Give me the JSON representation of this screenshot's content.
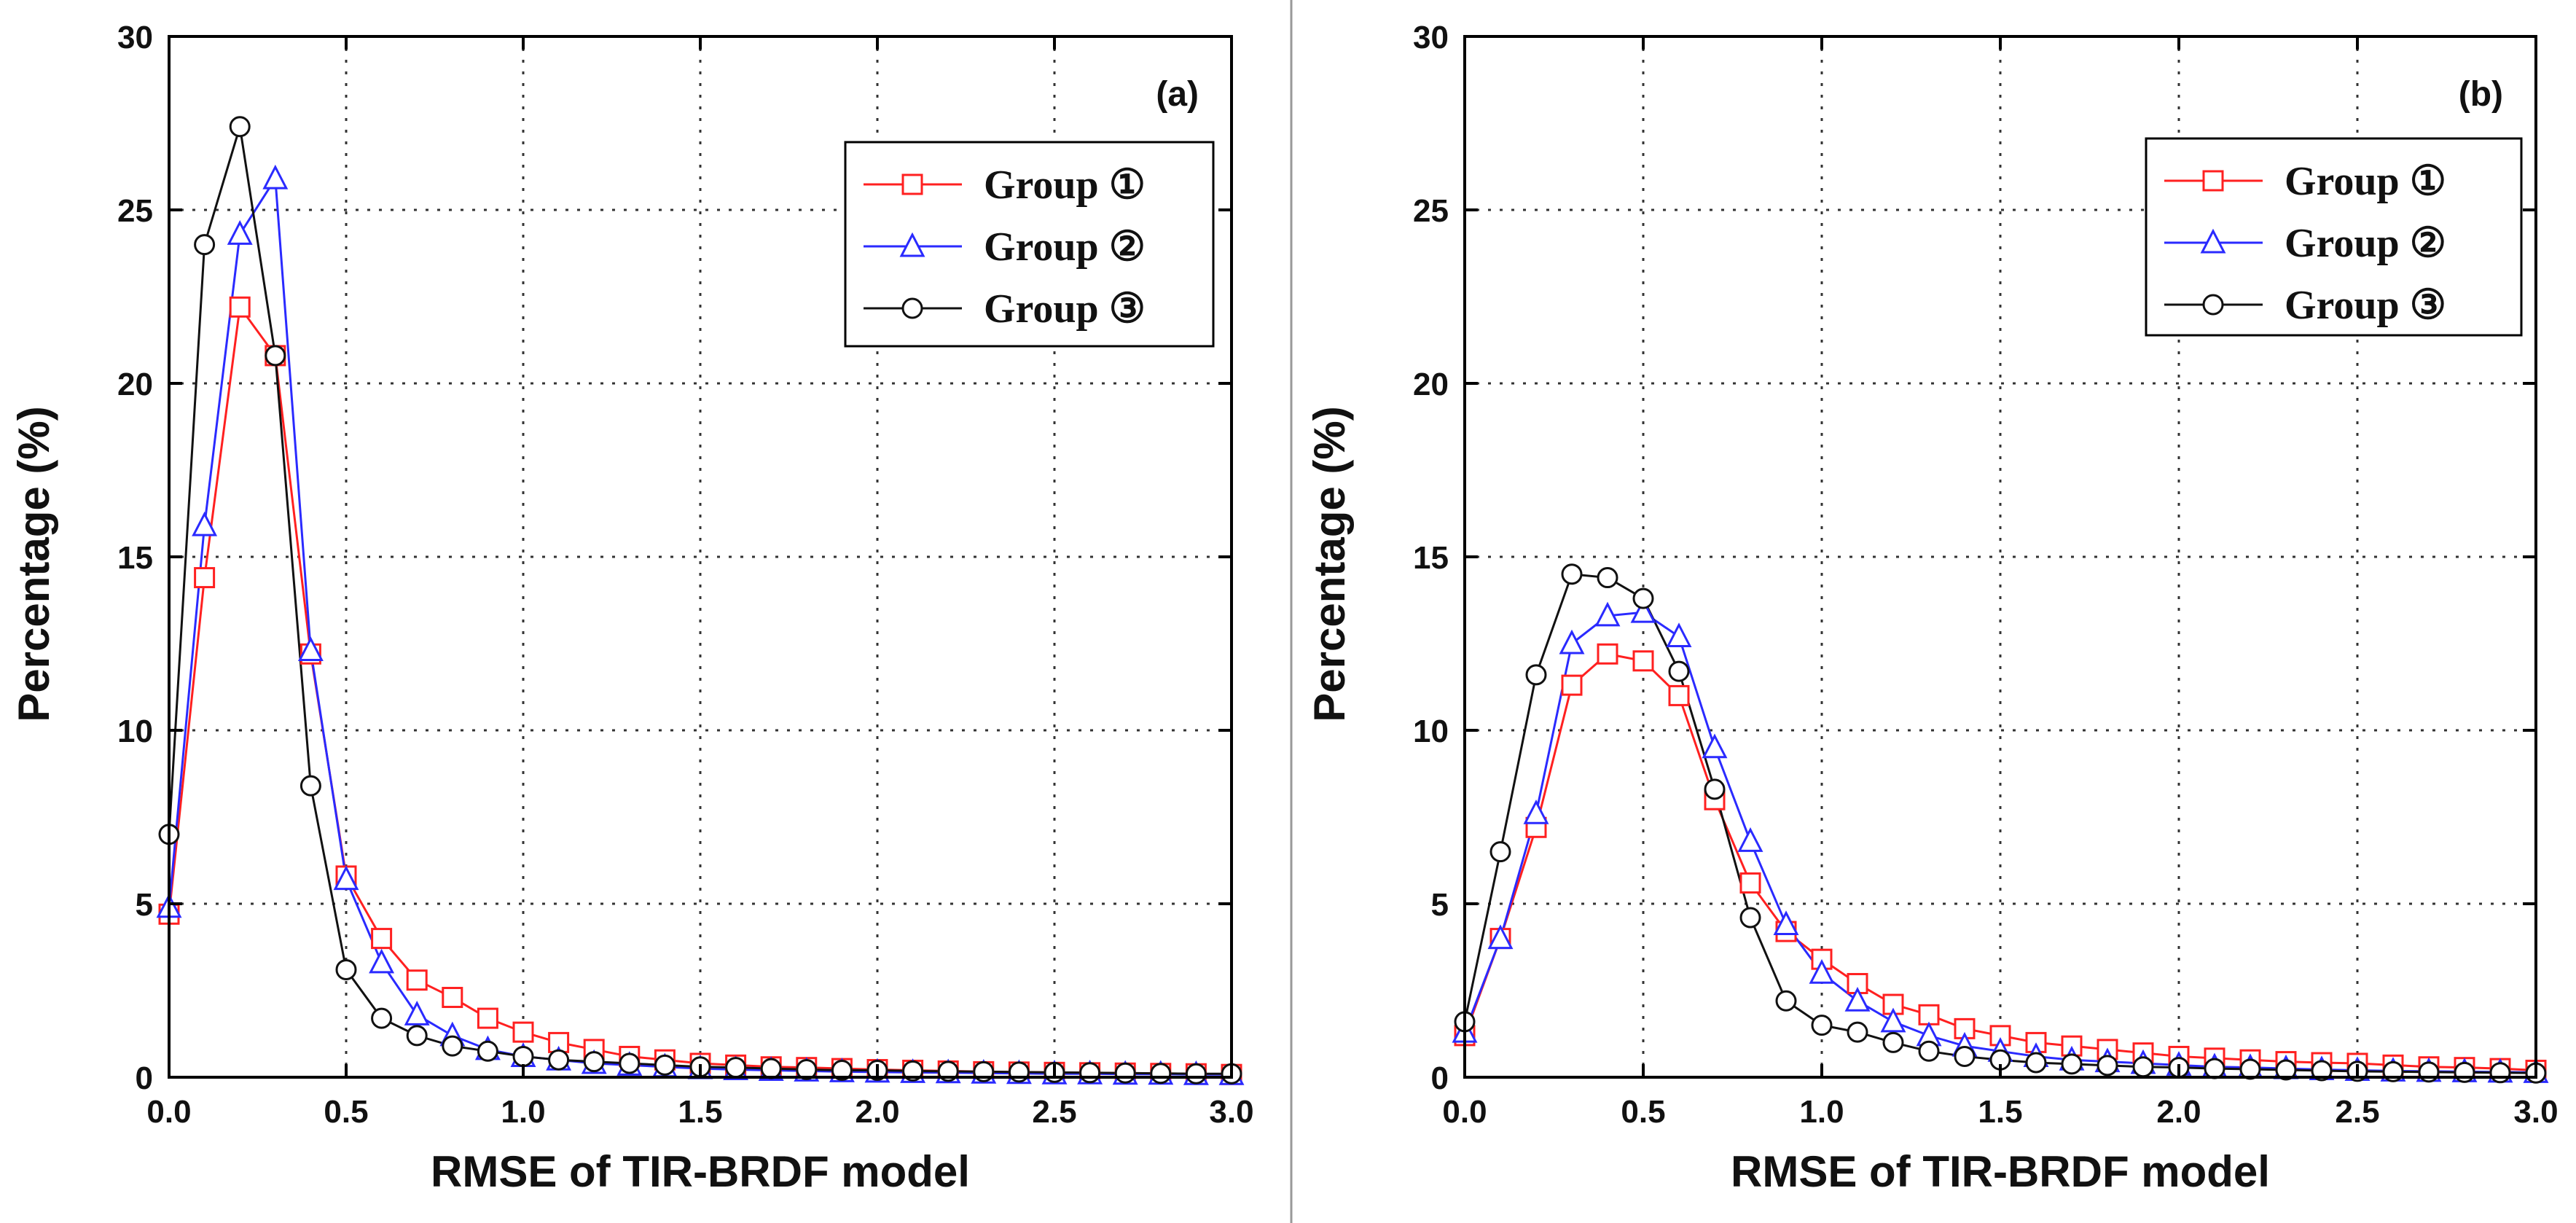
{
  "chart_data": [
    {
      "type": "line",
      "panel_label": "(a)",
      "xlabel": "RMSE of TIR-BRDF model",
      "ylabel": "Percentage (%)",
      "xlim": [
        0,
        3.0
      ],
      "ylim": [
        0,
        30
      ],
      "xticks": [
        "0.0",
        "0.5",
        "1.0",
        "1.5",
        "2.0",
        "2.5",
        "3.0"
      ],
      "yticks": [
        "0",
        "5",
        "10",
        "15",
        "20",
        "25",
        "30"
      ],
      "grid": true,
      "legend_position": "top-right",
      "x": [
        0.0,
        0.1,
        0.2,
        0.3,
        0.4,
        0.5,
        0.6,
        0.7,
        0.8,
        0.9,
        1.0,
        1.1,
        1.2,
        1.3,
        1.4,
        1.5,
        1.6,
        1.7,
        1.8,
        1.9,
        2.0,
        2.1,
        2.2,
        2.3,
        2.4,
        2.5,
        2.6,
        2.7,
        2.8,
        2.9,
        3.0
      ],
      "series": [
        {
          "name": "Group ①",
          "color": "#ff2020",
          "marker": "square",
          "values": [
            4.7,
            14.4,
            22.2,
            20.8,
            12.2,
            5.8,
            4.0,
            2.8,
            2.3,
            1.7,
            1.3,
            1.0,
            0.8,
            0.6,
            0.5,
            0.4,
            0.35,
            0.3,
            0.28,
            0.25,
            0.22,
            0.2,
            0.18,
            0.16,
            0.15,
            0.14,
            0.13,
            0.12,
            0.11,
            0.1,
            0.08
          ]
        },
        {
          "name": "Group ②",
          "color": "#2a2aff",
          "marker": "triangle",
          "values": [
            4.9,
            15.9,
            24.3,
            25.9,
            12.3,
            5.7,
            3.3,
            1.8,
            1.2,
            0.8,
            0.6,
            0.5,
            0.4,
            0.35,
            0.3,
            0.25,
            0.22,
            0.2,
            0.18,
            0.16,
            0.15,
            0.14,
            0.13,
            0.12,
            0.11,
            0.1,
            0.1,
            0.09,
            0.09,
            0.08,
            0.08
          ]
        },
        {
          "name": "Group ③",
          "color": "#111111",
          "marker": "circle",
          "values": [
            7.0,
            24.0,
            27.4,
            20.8,
            8.4,
            3.1,
            1.7,
            1.2,
            0.9,
            0.75,
            0.6,
            0.5,
            0.45,
            0.4,
            0.35,
            0.3,
            0.28,
            0.25,
            0.22,
            0.2,
            0.2,
            0.18,
            0.17,
            0.16,
            0.15,
            0.14,
            0.13,
            0.12,
            0.11,
            0.1,
            0.1
          ]
        }
      ]
    },
    {
      "type": "line",
      "panel_label": "(b)",
      "xlabel": "RMSE of TIR-BRDF model",
      "ylabel": "Percentage (%)",
      "xlim": [
        0,
        3.0
      ],
      "ylim": [
        0,
        30
      ],
      "xticks": [
        "0.0",
        "0.5",
        "1.0",
        "1.5",
        "2.0",
        "2.5",
        "3.0"
      ],
      "yticks": [
        "0",
        "5",
        "10",
        "15",
        "20",
        "25",
        "30"
      ],
      "grid": true,
      "legend_position": "top-right",
      "x": [
        0.0,
        0.1,
        0.2,
        0.3,
        0.4,
        0.5,
        0.6,
        0.7,
        0.8,
        0.9,
        1.0,
        1.1,
        1.2,
        1.3,
        1.4,
        1.5,
        1.6,
        1.7,
        1.8,
        1.9,
        2.0,
        2.1,
        2.2,
        2.3,
        2.4,
        2.5,
        2.6,
        2.7,
        2.8,
        2.9,
        3.0
      ],
      "series": [
        {
          "name": "Group ①",
          "color": "#ff2020",
          "marker": "square",
          "values": [
            1.2,
            4.0,
            7.2,
            11.3,
            12.2,
            12.0,
            11.0,
            8.0,
            5.6,
            4.2,
            3.4,
            2.7,
            2.1,
            1.8,
            1.4,
            1.2,
            1.0,
            0.9,
            0.8,
            0.7,
            0.6,
            0.55,
            0.5,
            0.45,
            0.42,
            0.4,
            0.35,
            0.3,
            0.28,
            0.25,
            0.2
          ]
        },
        {
          "name": "Group ②",
          "color": "#2a2aff",
          "marker": "triangle",
          "values": [
            1.3,
            4.0,
            7.6,
            12.5,
            13.3,
            13.4,
            12.7,
            9.5,
            6.8,
            4.4,
            3.0,
            2.2,
            1.6,
            1.2,
            0.9,
            0.75,
            0.6,
            0.5,
            0.45,
            0.4,
            0.35,
            0.3,
            0.28,
            0.25,
            0.22,
            0.2,
            0.18,
            0.17,
            0.16,
            0.15,
            0.14
          ]
        },
        {
          "name": "Group ③",
          "color": "#111111",
          "marker": "circle",
          "values": [
            1.6,
            6.5,
            11.6,
            14.5,
            14.4,
            13.8,
            11.7,
            8.3,
            4.6,
            2.2,
            1.5,
            1.3,
            1.0,
            0.75,
            0.6,
            0.5,
            0.42,
            0.38,
            0.34,
            0.3,
            0.28,
            0.25,
            0.23,
            0.21,
            0.19,
            0.17,
            0.16,
            0.15,
            0.14,
            0.13,
            0.12
          ]
        }
      ]
    }
  ]
}
